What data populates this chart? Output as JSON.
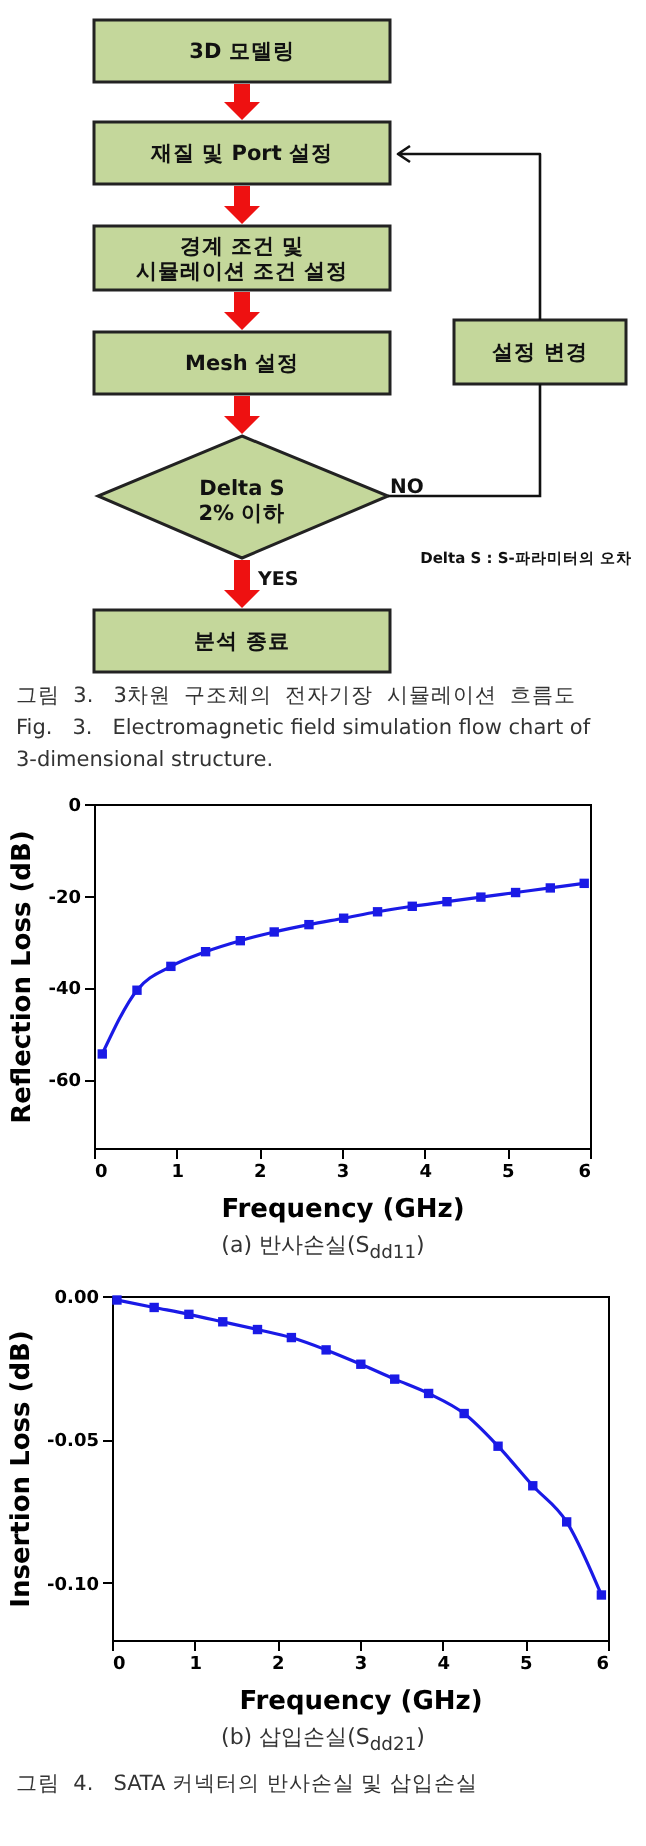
{
  "chart_data": [
    {
      "type": "other",
      "annotations": [
        "3D 모델링",
        "재질 및 Port 설정",
        "경계 조건 및\n시뮬레이션 조건 설정",
        "Mesh 설정",
        "Delta S\n2% 이하",
        "분석 종료",
        "설정 변경",
        "NO",
        "YES",
        "Delta S : S-파라미터의 오차",
        "그림  3.   3차원  구조체의  전자기장  시뮬레이션  흐름도",
        "Fig.   3.   Electromagnetic field simulation flow chart of\n3-dimensional structure."
      ]
    },
    {
      "type": "line",
      "xlabel": "Frequency (GHz)",
      "ylabel": "Reflection Loss (dB)",
      "xlim": [
        0,
        6
      ],
      "xticks": [
        0,
        1,
        2,
        3,
        4,
        5,
        6
      ],
      "ylim": [
        -75,
        0
      ],
      "yticks": [
        0,
        -20,
        -40,
        -60
      ],
      "marker": "square",
      "line_style": "solid",
      "grid": false,
      "x": [
        0.1,
        0.52,
        0.93,
        1.35,
        1.77,
        2.18,
        2.6,
        3.02,
        3.43,
        3.85,
        4.27,
        4.68,
        5.1,
        5.52,
        5.93
      ],
      "series": [
        {
          "color": "#1a1ae6",
          "values": [
            -54.5,
            -40.6,
            -35.4,
            -32.2,
            -29.8,
            -27.9,
            -26.3,
            -24.9,
            -23.5,
            -22.3,
            -21.3,
            -20.3,
            -19.3,
            -18.3,
            -17.3
          ]
        }
      ],
      "annotations": [
        "(a)  반사손실(S$_{dd11}$)"
      ]
    },
    {
      "type": "line",
      "xlabel": "Frequency (GHz)",
      "ylabel": "Insertion Loss (dB)",
      "xlim": [
        0,
        6
      ],
      "xticks": [
        0,
        1,
        2,
        3,
        4,
        5,
        6
      ],
      "ylim": [
        -0.12,
        0
      ],
      "yticks": [
        {
          "value": 0,
          "label": "0.00"
        },
        {
          "value": -0.05,
          "label": "-0.05"
        },
        {
          "value": -0.1,
          "label": "-0.10"
        }
      ],
      "marker": "square",
      "line_style": "solid",
      "grid": false,
      "x": [
        0.06,
        0.51,
        0.93,
        1.34,
        1.76,
        2.17,
        2.59,
        3.01,
        3.42,
        3.83,
        4.26,
        4.67,
        5.09,
        5.5,
        5.92
      ],
      "series": [
        {
          "color": "#1a1ae6",
          "values": [
            -0.0014,
            -0.004,
            -0.0064,
            -0.009,
            -0.0117,
            -0.0145,
            -0.0188,
            -0.0238,
            -0.029,
            -0.034,
            -0.041,
            -0.0524,
            -0.0662,
            -0.0788,
            -0.1043
          ]
        }
      ],
      "annotations": [
        "(b)  삽입손실(S$_{dd21}$)",
        "그림  4.   SATA 커넥터의 반사손실 및 삽입손실"
      ]
    }
  ]
}
